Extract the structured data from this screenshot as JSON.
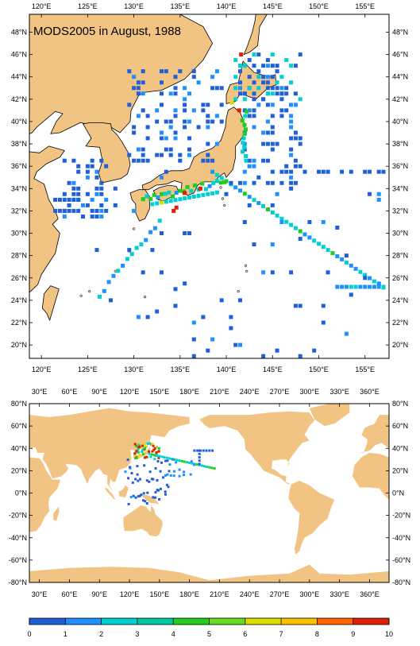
{
  "colors": {
    "land": "#f2c484",
    "ocean": "#ffffff",
    "coast": "#000000",
    "frame": "#000000",
    "scale": [
      "#1f5fd8",
      "#1e90ff",
      "#00d0d0",
      "#00c8a0",
      "#22cc22",
      "#66dd22",
      "#dddd00",
      "#ffc000",
      "#ff6600",
      "#e02000"
    ]
  },
  "top_map": {
    "title": "MODS2005 in August, 1988",
    "lon_ticks": [
      "120°E",
      "125°E",
      "130°E",
      "135°E",
      "140°E",
      "145°E",
      "150°E",
      "155°E"
    ],
    "lat_ticks": [
      "48°N",
      "46°N",
      "44°N",
      "42°N",
      "40°N",
      "38°N",
      "36°N",
      "34°N",
      "32°N",
      "30°N",
      "28°N",
      "26°N",
      "24°N",
      "22°N",
      "20°N"
    ]
  },
  "bottom_map": {
    "lon_ticks": [
      "30°E",
      "60°E",
      "90°E",
      "120°E",
      "150°E",
      "180°E",
      "210°E",
      "240°E",
      "270°E",
      "300°E",
      "330°E",
      "360°E"
    ],
    "lat_ticks": [
      "80°N",
      "60°N",
      "40°N",
      "20°N",
      "0°N",
      "-20°N",
      "-40°N",
      "-60°N",
      "-80°N"
    ]
  },
  "colorbar": {
    "labels": [
      "0",
      "1",
      "2",
      "3",
      "4",
      "5",
      "6",
      "7",
      "8",
      "9",
      "10"
    ]
  }
}
